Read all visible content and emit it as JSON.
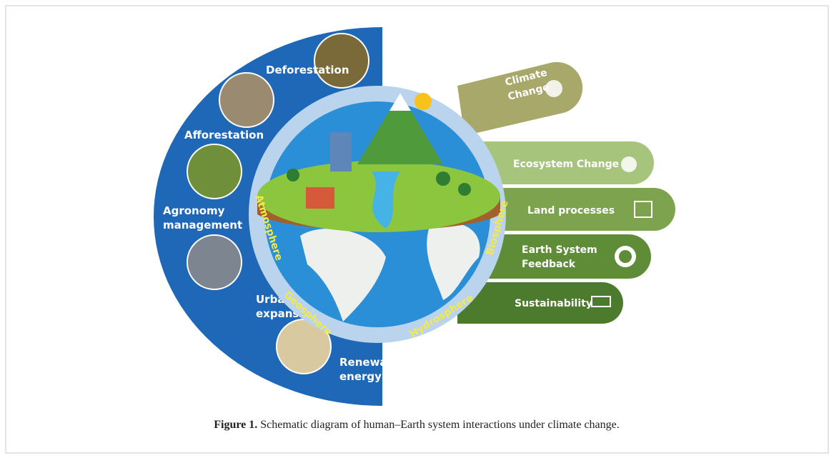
{
  "activities": [
    {
      "lines": [
        "Deforestation"
      ]
    },
    {
      "lines": [
        "Afforestation"
      ]
    },
    {
      "lines": [
        "Agronomy",
        "management"
      ]
    },
    {
      "lines": [
        "Urban",
        "expansion"
      ]
    },
    {
      "lines": [
        "Renewable",
        "energy use"
      ]
    }
  ],
  "spheres": [
    "Atmosphere",
    "Geosphere",
    "Hydrosphere",
    "Biosphere"
  ],
  "impacts": [
    {
      "lines": [
        "Climate",
        "Change"
      ]
    },
    {
      "lines": [
        "Ecosystem Change"
      ]
    },
    {
      "lines": [
        "Land processes"
      ]
    },
    {
      "lines": [
        "Earth System",
        "Feedback"
      ]
    },
    {
      "lines": [
        "Sustainability"
      ]
    }
  ],
  "caption": {
    "label": "Figure 1.",
    "text": "Schematic diagram of human–Earth system interactions under climate change."
  }
}
